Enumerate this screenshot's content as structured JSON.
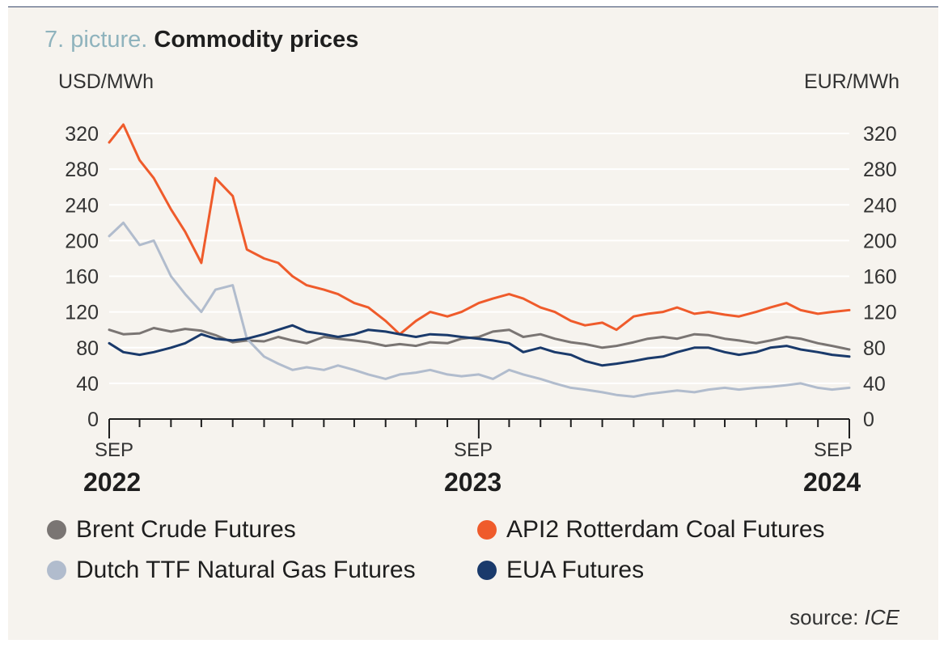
{
  "title_prefix": "7. picture.",
  "title": "Commodity prices",
  "source_label": "source:",
  "source_name": "ICE",
  "chart_data": {
    "type": "line",
    "ylabel_left": "USD/MWh",
    "ylabel_right": "EUR/MWh",
    "ylim": [
      0,
      340
    ],
    "yticks": [
      0,
      40,
      80,
      120,
      160,
      200,
      240,
      280,
      320
    ],
    "xlim": [
      "2022-09",
      "2024-09"
    ],
    "x_labels": [
      {
        "month": "SEP",
        "year": "2022",
        "x": "2022-09"
      },
      {
        "month": "SEP",
        "year": "2023",
        "x": "2023-09"
      },
      {
        "month": "SEP",
        "year": "2024",
        "x": "2024-09"
      }
    ],
    "grid": true,
    "legend_placement": "bottom",
    "x": [
      "2022-09-01",
      "2022-09-15",
      "2022-10-01",
      "2022-10-15",
      "2022-11-01",
      "2022-11-15",
      "2022-12-01",
      "2022-12-15",
      "2023-01-01",
      "2023-01-15",
      "2023-02-01",
      "2023-02-15",
      "2023-03-01",
      "2023-03-15",
      "2023-04-01",
      "2023-04-15",
      "2023-05-01",
      "2023-05-15",
      "2023-06-01",
      "2023-06-15",
      "2023-07-01",
      "2023-07-15",
      "2023-08-01",
      "2023-08-15",
      "2023-09-01",
      "2023-09-15",
      "2023-10-01",
      "2023-10-15",
      "2023-11-01",
      "2023-11-15",
      "2023-12-01",
      "2023-12-15",
      "2024-01-01",
      "2024-01-15",
      "2024-02-01",
      "2024-02-15",
      "2024-03-01",
      "2024-03-15",
      "2024-04-01",
      "2024-04-15",
      "2024-05-01",
      "2024-05-15",
      "2024-06-01",
      "2024-06-15",
      "2024-07-01",
      "2024-07-15",
      "2024-08-01",
      "2024-08-15",
      "2024-09-01"
    ],
    "series": [
      {
        "name": "Brent Crude Futures",
        "color": "#7a7573",
        "values": [
          100,
          95,
          96,
          102,
          98,
          101,
          99,
          94,
          86,
          88,
          87,
          92,
          88,
          85,
          92,
          90,
          88,
          86,
          82,
          84,
          82,
          86,
          85,
          90,
          92,
          98,
          100,
          92,
          95,
          90,
          86,
          84,
          80,
          82,
          86,
          90,
          92,
          90,
          95,
          94,
          90,
          88,
          85,
          88,
          92,
          90,
          85,
          82,
          78
        ]
      },
      {
        "name": "API2 Rotterdam Coal Futures",
        "color": "#ef5b2b",
        "values": [
          310,
          330,
          290,
          270,
          235,
          210,
          175,
          270,
          250,
          190,
          180,
          175,
          160,
          150,
          145,
          140,
          130,
          125,
          110,
          95,
          110,
          120,
          115,
          120,
          130,
          135,
          140,
          135,
          125,
          120,
          110,
          105,
          108,
          100,
          115,
          118,
          120,
          125,
          118,
          120,
          117,
          115,
          120,
          125,
          130,
          122,
          118,
          120,
          122
        ]
      },
      {
        "name": "Dutch TTF Natural Gas Futures",
        "color": "#b1bccd",
        "values": [
          205,
          220,
          195,
          200,
          160,
          140,
          120,
          145,
          150,
          90,
          70,
          62,
          55,
          58,
          55,
          60,
          55,
          50,
          45,
          50,
          52,
          55,
          50,
          48,
          50,
          45,
          55,
          50,
          45,
          40,
          35,
          33,
          30,
          27,
          25,
          28,
          30,
          32,
          30,
          33,
          35,
          33,
          35,
          36,
          38,
          40,
          35,
          33,
          35
        ]
      },
      {
        "name": "EUA Futures",
        "color": "#1a3a6b",
        "values": [
          85,
          75,
          72,
          75,
          80,
          85,
          95,
          90,
          88,
          90,
          95,
          100,
          105,
          98,
          95,
          92,
          95,
          100,
          98,
          95,
          92,
          95,
          94,
          92,
          90,
          88,
          85,
          75,
          80,
          75,
          72,
          65,
          60,
          62,
          65,
          68,
          70,
          75,
          80,
          80,
          75,
          72,
          75,
          80,
          82,
          78,
          75,
          72,
          70
        ]
      }
    ]
  }
}
